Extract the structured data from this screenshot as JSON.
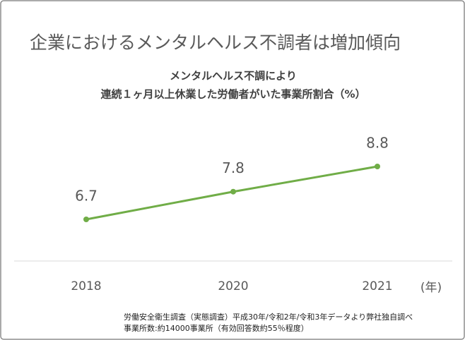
{
  "chart_data": {
    "type": "line",
    "title": "企業におけるメンタルヘルス不調者は増加傾向",
    "subtitle": [
      "メンタルヘルス不調により",
      "連続１ヶ月以上休業した労働者がいた事業所割合（%）"
    ],
    "x_label": "(年)",
    "categories": [
      "2018",
      "2020",
      "2021"
    ],
    "values": [
      6.7,
      7.8,
      8.8
    ],
    "color": "#70ad47",
    "notes": [
      "労働安全衛生調査（実態調査）平成30年/令和2年/令和3年データより弊社独自調べ",
      "事業所数:約14000事業所（有効回答数約55％程度）"
    ]
  }
}
